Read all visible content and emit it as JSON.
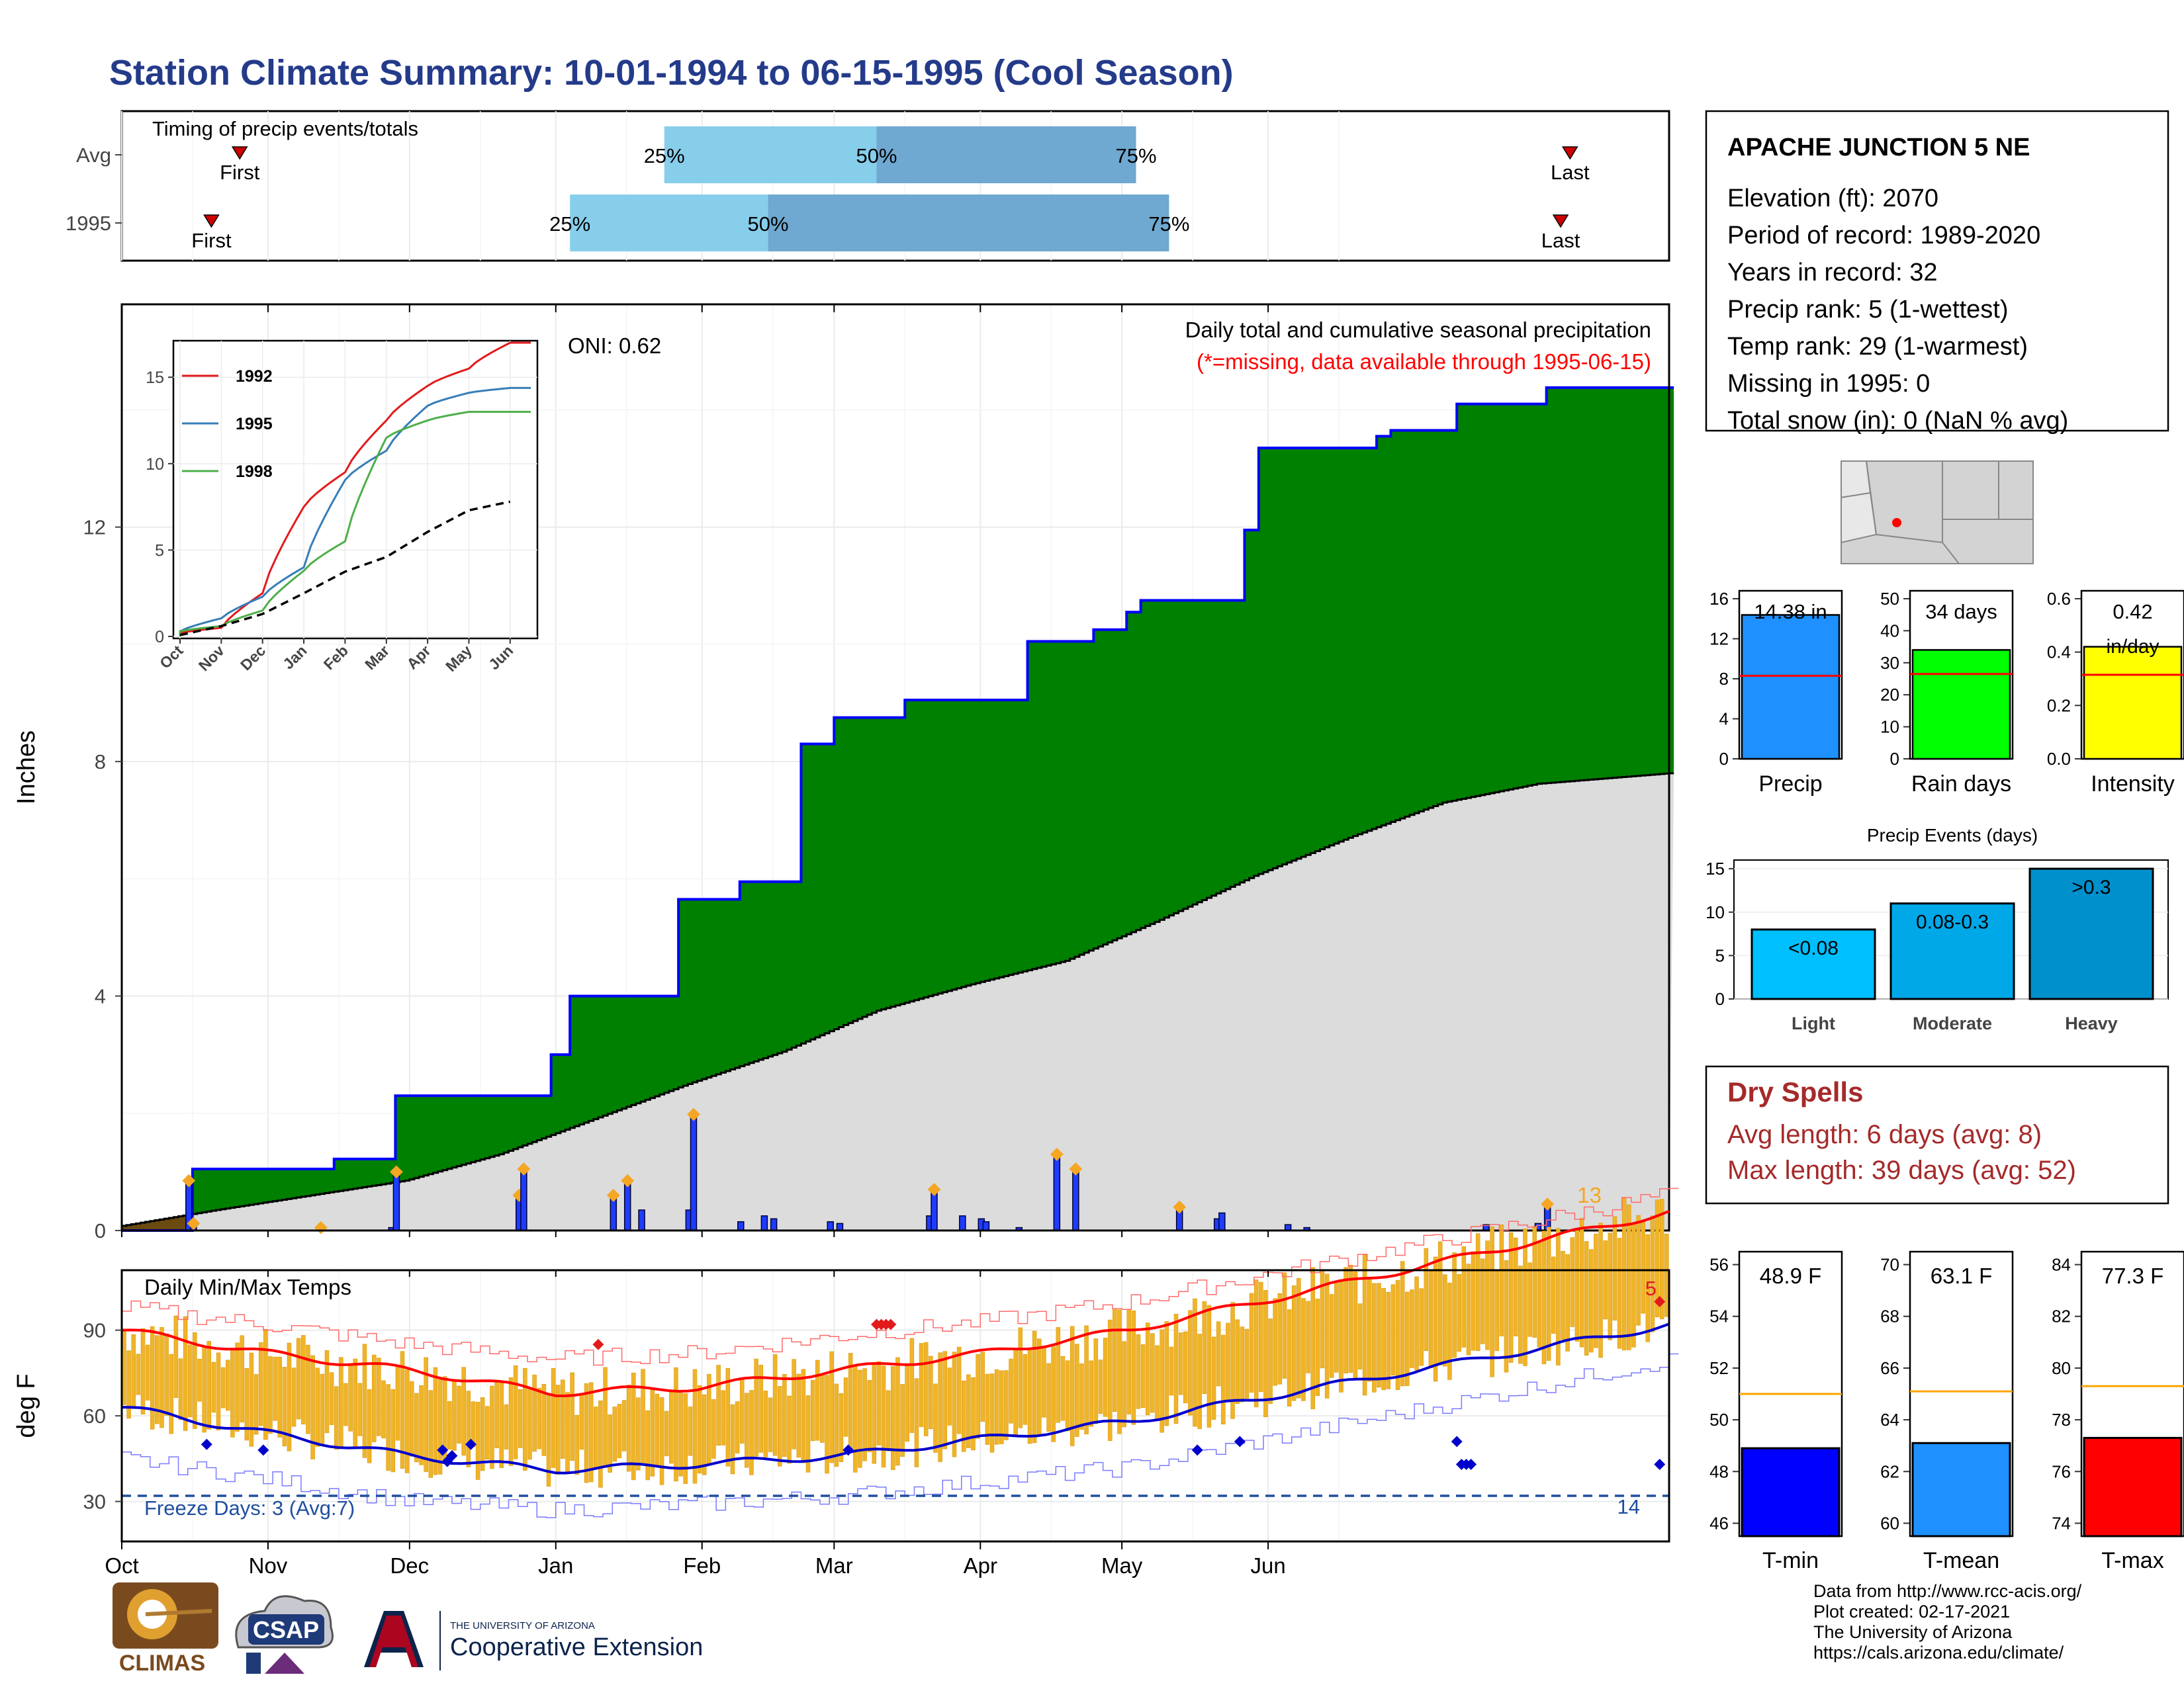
{
  "title": "Station Climate Summary: 10-01-1994 to 06-15-1995 (Cool Season)",
  "timing": {
    "label": "Timing of precip events/totals",
    "rows": [
      {
        "name": "Avg",
        "first_label": "First",
        "last_label": "Last",
        "first": 25,
        "last": 307,
        "p25": 115,
        "p50": 160,
        "p75": 215
      },
      {
        "name": "1995",
        "first_label": "First",
        "last_label": "Last",
        "first": 19,
        "last": 305,
        "p25": 95,
        "p50": 137,
        "p75": 222
      }
    ],
    "pct_labels": [
      "25%",
      "50%",
      "75%"
    ]
  },
  "precip_panel": {
    "ylabel": "Inches",
    "yticks": [
      "0",
      "4",
      "8",
      "12"
    ],
    "oni": "ONI: 0.62",
    "desc": "Daily total and cumulative seasonal precipitation",
    "missing_note": "(*=missing, data available through 1995-06-15)",
    "count_label": "13",
    "colors": {
      "above": "#008000",
      "below": "#dcdcdc",
      "line": "#0000ff",
      "bars": "#1e3cff",
      "marker": "#f5a623"
    }
  },
  "inset": {
    "yticks": [
      "0",
      "5",
      "10",
      "15"
    ],
    "xticks": [
      "Oct",
      "Nov",
      "Dec",
      "Jan",
      "Feb",
      "Mar",
      "Apr",
      "May",
      "Jun"
    ],
    "legend": [
      "1992",
      "1995",
      "1998"
    ],
    "colors": [
      "#e31a1c",
      "#377eb8",
      "#4daf4a"
    ]
  },
  "temp_panel": {
    "ylabel": "deg F",
    "label": "Daily Min/Max Temps",
    "yticks": [
      "30",
      "60",
      "90"
    ],
    "freeze": "Freeze Days: 3 (Avg:7)",
    "count_hi": "5",
    "count_lo": "14"
  },
  "xaxis": {
    "months": [
      "Oct",
      "Nov",
      "Dec",
      "Jan",
      "Feb",
      "Mar",
      "Apr",
      "May",
      "Jun"
    ]
  },
  "station": {
    "name": "APACHE JUNCTION 5 NE",
    "lines": [
      "Elevation (ft): 2070",
      "Period of record: 1989-2020",
      "Years in record: 32",
      "Precip rank: 5 (1-wettest)",
      "Temp rank: 29 (1-warmest)",
      "Missing in 1995: 0",
      "Total snow (in): 0 (NaN % avg)"
    ]
  },
  "mini_bars": [
    {
      "label": "Precip",
      "value_text": "14.38 in",
      "value": 14.38,
      "avg": 8.3,
      "ymax": 16,
      "yticks": [
        "0",
        "4",
        "8",
        "12",
        "16"
      ],
      "color": "#1e90ff"
    },
    {
      "label": "Rain days",
      "value_text": "34 days",
      "value": 34,
      "avg": 26.5,
      "ymax": 50,
      "yticks": [
        "0",
        "10",
        "20",
        "30",
        "40",
        "50"
      ],
      "color": "#00ff00"
    },
    {
      "label": "Intensity",
      "value_text": "0.42",
      "value_text2": "in/day",
      "value": 0.42,
      "avg": 0.315,
      "ymax": 0.6,
      "yticks": [
        "0.0",
        "0.2",
        "0.4",
        "0.6"
      ],
      "color": "#ffff00"
    }
  ],
  "events": {
    "title": "Precip Events (days)",
    "yticks": [
      "0",
      "5",
      "10",
      "15"
    ],
    "bars": [
      {
        "label": "Light",
        "range": "<0.08",
        "value": 8,
        "color": "#00bfff"
      },
      {
        "label": "Moderate",
        "range": "0.08-0.3",
        "value": 11,
        "color": "#00a8e8"
      },
      {
        "label": "Heavy",
        "range": ">0.3",
        "value": 15,
        "color": "#0090cc"
      }
    ]
  },
  "dry_spells": {
    "title": "Dry Spells",
    "avg": "Avg length: 6 days (avg: 8)",
    "max": "Max length: 39 days (avg: 52)"
  },
  "temp_bars": [
    {
      "label": "T-min",
      "value_text": "48.9 F",
      "value": 48.9,
      "avg": 51.0,
      "ymin": 45.5,
      "ymax": 56.5,
      "yticks": [
        "46",
        "48",
        "50",
        "52",
        "54",
        "56"
      ],
      "color": "#0000ff"
    },
    {
      "label": "T-mean",
      "value_text": "63.1 F",
      "value": 63.1,
      "avg": 65.1,
      "ymin": 59.5,
      "ymax": 70.5,
      "yticks": [
        "60",
        "62",
        "64",
        "66",
        "68",
        "70"
      ],
      "color": "#1e90ff"
    },
    {
      "label": "T-max",
      "value_text": "77.3 F",
      "value": 77.3,
      "avg": 79.3,
      "ymin": 73.5,
      "ymax": 84.5,
      "yticks": [
        "74",
        "76",
        "78",
        "80",
        "82",
        "84"
      ],
      "color": "#ff0000"
    }
  ],
  "logos": {
    "climas": "CLIMAS",
    "csap": "CSAP",
    "ua_small": "THE UNIVERSITY OF ARIZONA",
    "coop": "Cooperative Extension"
  },
  "credits": [
    "Data from http://www.rcc-acis.org/",
    "Plot created: 02-17-2021",
    "The University of Arizona",
    "https://cals.arizona.edu/climate/"
  ],
  "chart_data": [
    {
      "type": "area",
      "title": "Daily total and cumulative seasonal precipitation",
      "ylabel": "Inches",
      "ylim": [
        0,
        15.8
      ],
      "x_unit": "days since 10-01-1994",
      "cumulative_1995": {
        "x": [
          0,
          14,
          15,
          44,
          45,
          57,
          58,
          90,
          91,
          94,
          95,
          117,
          118,
          130,
          131,
          143,
          144,
          150,
          151,
          165,
          166,
          191,
          192,
          205,
          206,
          212,
          213,
          215,
          216,
          237,
          238,
          240,
          241,
          245,
          246,
          265,
          266,
          268,
          269,
          273,
          274,
          282,
          283,
          301,
          302,
          305,
          306,
          328
        ],
        "y": [
          0,
          0,
          1.05,
          1.05,
          1.22,
          1.22,
          2.3,
          2.3,
          3.0,
          3.0,
          4.0,
          4.0,
          5.65,
          5.65,
          5.95,
          5.95,
          8.3,
          8.3,
          8.75,
          8.75,
          9.05,
          9.05,
          10.05,
          10.05,
          10.25,
          10.25,
          10.55,
          10.55,
          10.75,
          10.75,
          11.95,
          11.95,
          13.35,
          13.35,
          13.35,
          13.35,
          13.55,
          13.55,
          13.65,
          13.65,
          13.65,
          13.65,
          14.1,
          14.1,
          14.38,
          14.38,
          14.38,
          14.38
        ]
      },
      "cumulative_avg": {
        "x": [
          0,
          20,
          40,
          60,
          80,
          100,
          120,
          140,
          160,
          180,
          200,
          220,
          240,
          260,
          280,
          300,
          328
        ],
        "y": [
          0.08,
          0.35,
          0.6,
          0.85,
          1.3,
          1.9,
          2.5,
          3.05,
          3.75,
          4.2,
          4.6,
          5.3,
          6.05,
          6.7,
          7.3,
          7.62,
          7.8
        ]
      },
      "daily_bars": {
        "x": [
          14,
          15,
          42,
          57,
          58,
          84,
          85,
          104,
          107,
          110,
          120,
          121,
          131,
          136,
          138,
          150,
          152,
          171,
          172,
          178,
          182,
          183,
          190,
          198,
          202,
          224,
          232,
          233,
          247,
          251,
          289,
          300,
          302
        ],
        "y": [
          0.85,
          0.12,
          0.05,
          0.05,
          1.0,
          0.6,
          1.05,
          0.6,
          0.85,
          0.35,
          0.35,
          1.98,
          0.15,
          0.25,
          0.2,
          0.15,
          0.12,
          0.25,
          0.7,
          0.25,
          0.2,
          0.15,
          0.05,
          1.3,
          1.05,
          0.4,
          0.2,
          0.3,
          0.1,
          0.05,
          0.1,
          0.12,
          0.45
        ]
      }
    },
    {
      "type": "line",
      "title": "",
      "xlabel": "",
      "ylabel": "",
      "ylim": [
        0,
        17
      ],
      "x": [
        "Oct",
        "Nov",
        "Dec",
        "Jan",
        "Feb",
        "Mar",
        "Apr",
        "May",
        "Jun"
      ],
      "series": [
        {
          "name": "1992",
          "values": [
            0.2,
            0.5,
            2.5,
            7.5,
            9.5,
            12.5,
            14.5,
            15.5,
            17.0
          ]
        },
        {
          "name": "1995",
          "values": [
            0.3,
            1.05,
            2.3,
            4.0,
            9.05,
            10.75,
            13.35,
            14.1,
            14.38
          ]
        },
        {
          "name": "1998",
          "values": [
            0.3,
            0.6,
            1.5,
            3.8,
            5.5,
            11.5,
            12.5,
            13.0,
            13.0
          ]
        },
        {
          "values": [
            0.08,
            0.6,
            1.3,
            2.5,
            3.75,
            4.6,
            6.05,
            7.3,
            7.8
          ]
        }
      ]
    },
    {
      "type": "bar",
      "title": "Daily Min/Max Temps",
      "ylabel": "deg F",
      "ylim": [
        16,
        111
      ],
      "x": [
        "Oct",
        "Nov",
        "Dec",
        "Jan",
        "Feb",
        "Mar",
        "Apr",
        "May",
        "Jun"
      ],
      "series": [
        {
          "values": [
            90,
            82,
            76,
            68,
            70,
            76,
            82,
            90,
            101
          ]
        },
        {
          "values": [
            63,
            54,
            46,
            41,
            43,
            46,
            52,
            58,
            67
          ]
        },
        {
          "values": [
            98,
            92,
            85,
            80,
            82,
            88,
            93,
            100,
            110
          ]
        },
        {
          "values": [
            45,
            38,
            30,
            27,
            29,
            32,
            37,
            42,
            52
          ]
        }
      ],
      "freeze_threshold": 32
    },
    {
      "type": "bar",
      "title": "Precip Events (days)",
      "categories": [
        "Light",
        "Moderate",
        "Heavy"
      ],
      "values": [
        8,
        11,
        15
      ],
      "ylim": [
        0,
        16
      ]
    },
    {
      "type": "bar",
      "categories": [
        "Precip",
        "Rain days",
        "Intensity"
      ],
      "values": [
        14.38,
        34,
        0.42
      ]
    },
    {
      "type": "bar",
      "categories": [
        "T-min",
        "T-mean",
        "T-max"
      ],
      "values": [
        48.9,
        63.1,
        77.3
      ]
    }
  ]
}
